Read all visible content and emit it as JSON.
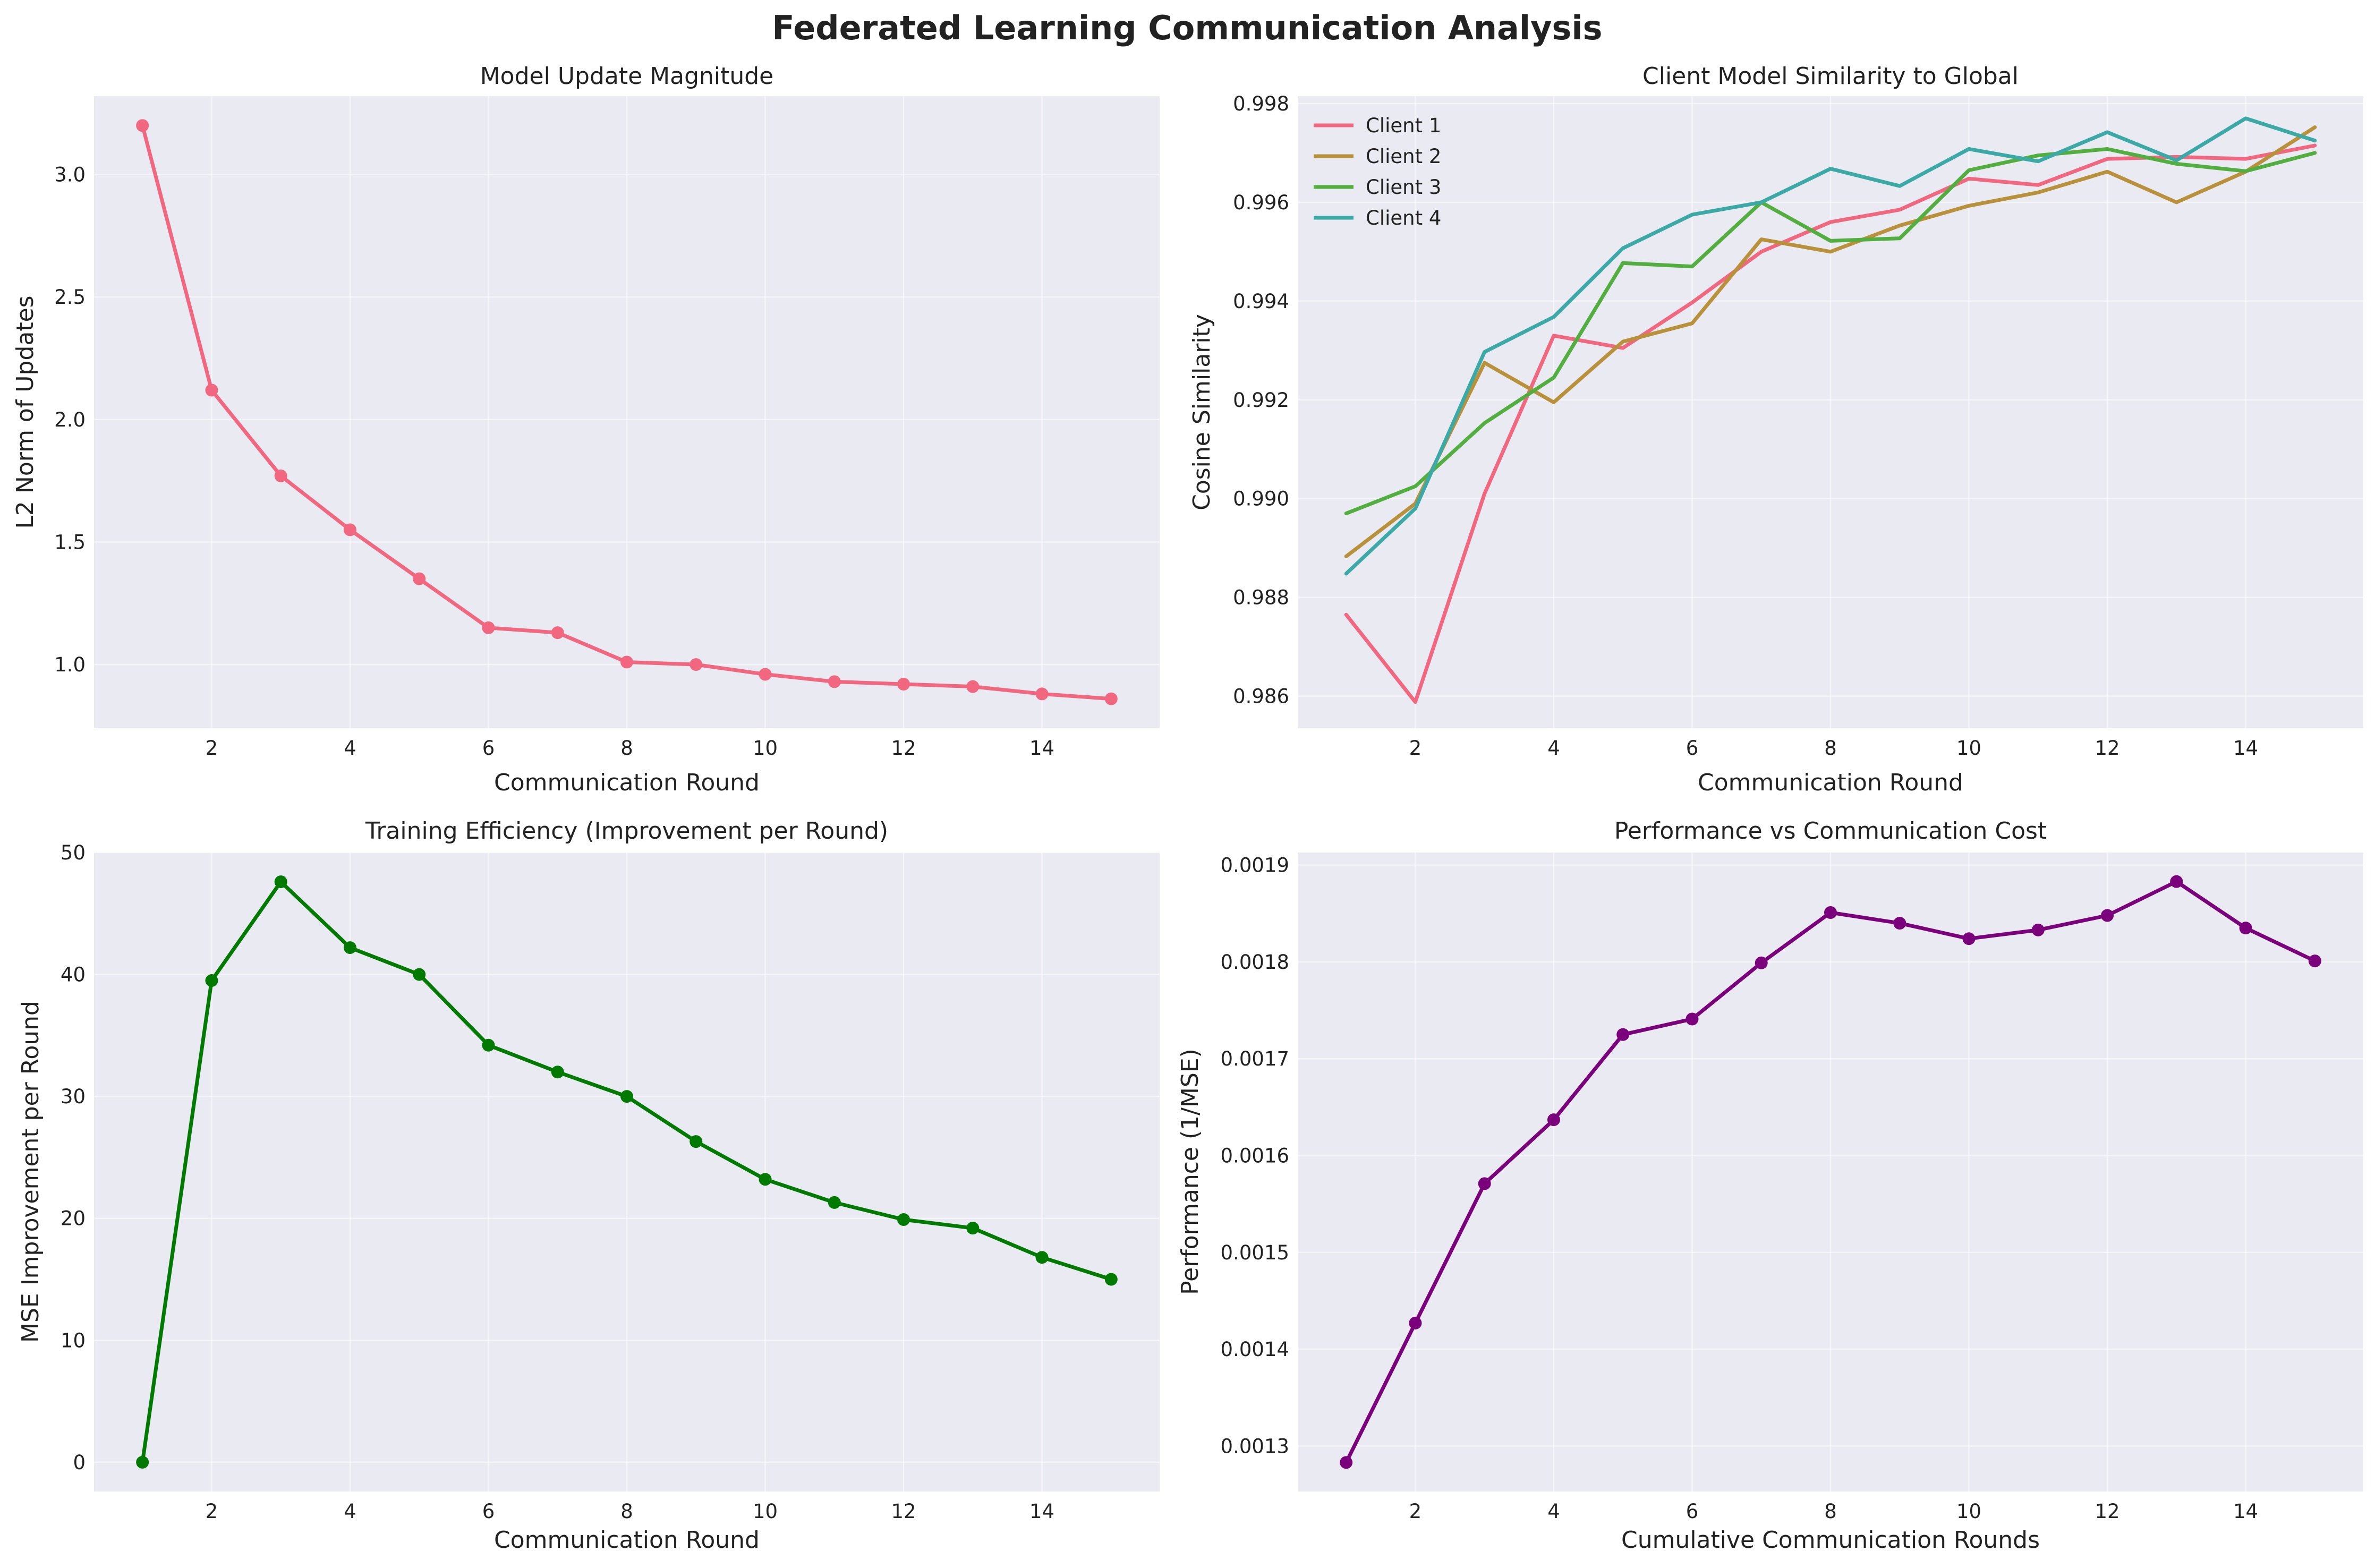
{
  "figure": {
    "title": "Federated Learning Communication Analysis"
  },
  "colors": {
    "pink": "#f0677f",
    "gold": "#b8913a",
    "green": "#52ae3e",
    "teal": "#3ba9a6",
    "darkgreen": "#007a00",
    "purple": "#7b007b",
    "plot_bg": "#eaeaf2"
  },
  "chart_data": [
    {
      "type": "line",
      "title": "Model Update Magnitude",
      "xlabel": "Communication Round",
      "ylabel": "L2 Norm of Updates",
      "x": [
        1,
        2,
        3,
        4,
        5,
        6,
        7,
        8,
        9,
        10,
        11,
        12,
        13,
        14,
        15
      ],
      "series": [
        {
          "values": [
            3.2,
            2.12,
            1.77,
            1.55,
            1.35,
            1.15,
            1.13,
            1.01,
            1.0,
            0.96,
            0.93,
            0.92,
            0.91,
            0.88,
            0.86
          ],
          "color": "#f0677f",
          "markers": true
        }
      ],
      "xlim": [
        0.3,
        15.7
      ],
      "ylim": [
        0.74,
        3.32
      ],
      "xticks": [
        2,
        4,
        6,
        8,
        10,
        12,
        14
      ],
      "yticks": [
        1.0,
        1.5,
        2.0,
        2.5,
        3.0
      ],
      "ytick_labels": [
        "1.0",
        "1.5",
        "2.0",
        "2.5",
        "3.0"
      ],
      "grid": true
    },
    {
      "type": "line",
      "title": "Client Model Similarity to Global",
      "xlabel": "Communication Round",
      "ylabel": "Cosine Similarity",
      "x": [
        1,
        2,
        3,
        4,
        5,
        6,
        7,
        8,
        9,
        10,
        11,
        12,
        13,
        14,
        15
      ],
      "series": [
        {
          "name": "Client 1",
          "color": "#f0677f",
          "values": [
            0.98765,
            0.98588,
            0.9901,
            0.9933,
            0.99305,
            0.99397,
            0.995,
            0.9956,
            0.99585,
            0.99648,
            0.99635,
            0.99688,
            0.99692,
            0.99688,
            0.99715
          ]
        },
        {
          "name": "Client 2",
          "color": "#b8913a",
          "values": [
            0.98883,
            0.9899,
            0.99275,
            0.99195,
            0.99318,
            0.99355,
            0.99525,
            0.995,
            0.99553,
            0.99593,
            0.9962,
            0.99662,
            0.996,
            0.99662,
            0.99752
          ]
        },
        {
          "name": "Client 3",
          "color": "#52ae3e",
          "values": [
            0.9897,
            0.99025,
            0.99153,
            0.99245,
            0.99477,
            0.9947,
            0.996,
            0.99522,
            0.99527,
            0.99665,
            0.99695,
            0.99708,
            0.99678,
            0.99663,
            0.997
          ]
        },
        {
          "name": "Client 4",
          "color": "#3ba9a6",
          "values": [
            0.98848,
            0.9898,
            0.99297,
            0.99368,
            0.99507,
            0.99575,
            0.996,
            0.99668,
            0.99633,
            0.99708,
            0.99683,
            0.99742,
            0.99685,
            0.9977,
            0.99725
          ]
        }
      ],
      "xlim": [
        0.3,
        15.7
      ],
      "ylim": [
        0.98535,
        0.99815
      ],
      "xticks": [
        2,
        4,
        6,
        8,
        10,
        12,
        14
      ],
      "yticks": [
        0.986,
        0.988,
        0.99,
        0.992,
        0.994,
        0.996,
        0.998
      ],
      "ytick_labels": [
        "0.986",
        "0.988",
        "0.990",
        "0.992",
        "0.994",
        "0.996",
        "0.998"
      ],
      "legend": "top-left",
      "grid": true
    },
    {
      "type": "line",
      "title": "Training Efficiency (Improvement per Round)",
      "xlabel": "Communication Round",
      "ylabel": "MSE Improvement per Round",
      "x": [
        1,
        2,
        3,
        4,
        5,
        6,
        7,
        8,
        9,
        10,
        11,
        12,
        13,
        14,
        15
      ],
      "series": [
        {
          "values": [
            0.0,
            39.5,
            47.6,
            42.2,
            40.0,
            34.2,
            32.0,
            30.0,
            26.3,
            23.2,
            21.3,
            19.9,
            19.2,
            16.8,
            15.0
          ],
          "color": "#007a00",
          "markers": true
        }
      ],
      "xlim": [
        0.3,
        15.7
      ],
      "ylim": [
        -2.4,
        50.0
      ],
      "xticks": [
        2,
        4,
        6,
        8,
        10,
        12,
        14
      ],
      "yticks": [
        0,
        10,
        20,
        30,
        40,
        50
      ],
      "ytick_labels": [
        "0",
        "10",
        "20",
        "30",
        "40",
        "50"
      ],
      "grid": true
    },
    {
      "type": "line",
      "title": "Performance vs Communication Cost",
      "xlabel": "Cumulative Communication Rounds",
      "ylabel": "Performance (1/MSE)",
      "x": [
        1,
        2,
        3,
        4,
        5,
        6,
        7,
        8,
        9,
        10,
        11,
        12,
        13,
        14,
        15
      ],
      "series": [
        {
          "values": [
            0.001283,
            0.001427,
            0.001571,
            0.001637,
            0.001725,
            0.001741,
            0.001799,
            0.001851,
            0.00184,
            0.001824,
            0.001833,
            0.001848,
            0.001883,
            0.001835,
            0.001801
          ],
          "color": "#7b007b",
          "markers": true
        }
      ],
      "xlim": [
        0.3,
        15.7
      ],
      "ylim": [
        0.001253,
        0.001913
      ],
      "xticks": [
        2,
        4,
        6,
        8,
        10,
        12,
        14
      ],
      "yticks": [
        0.0013,
        0.0014,
        0.0015,
        0.0016,
        0.0017,
        0.0018,
        0.0019
      ],
      "ytick_labels": [
        "0.0013",
        "0.0014",
        "0.0015",
        "0.0016",
        "0.0017",
        "0.0018",
        "0.0019"
      ],
      "grid": true
    }
  ]
}
